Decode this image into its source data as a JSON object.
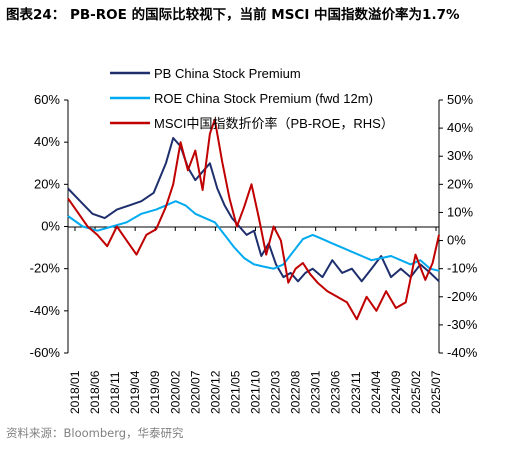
{
  "header": {
    "title": "图表24： PB-ROE 的国际比较视下，当前 MSCI 中国指数溢价率为1.7%"
  },
  "footer": {
    "source": "资料来源：Bloomberg，华泰研究"
  },
  "chart_data": {
    "type": "line",
    "x_tick_labels": [
      "2018/01",
      "2018/06",
      "2018/11",
      "2019/04",
      "2019/09",
      "2020/02",
      "2020/07",
      "2020/12",
      "2021/05",
      "2021/10",
      "2022/03",
      "2022/08",
      "2023/01",
      "2023/06",
      "2023/11",
      "2024/04",
      "2024/09",
      "2025/02",
      "2025/07"
    ],
    "y_left": {
      "ticks": [
        "60%",
        "40%",
        "20%",
        "0%",
        "-20%",
        "-40%",
        "-60%"
      ],
      "ylim": [
        -60,
        60
      ]
    },
    "y_right": {
      "ticks": [
        "50%",
        "40%",
        "30%",
        "20%",
        "10%",
        "0%",
        "-10%",
        "-20%",
        "-30%",
        "-40%"
      ],
      "ylim": [
        -40,
        50
      ]
    },
    "legend_position": "top-center",
    "grid": false,
    "series": [
      {
        "name": "PB China Stock Premium",
        "axis": "left",
        "color": "#1f2f6e",
        "x": [
          2018.0,
          2018.25,
          2018.5,
          2018.75,
          2019.0,
          2019.25,
          2019.5,
          2019.75,
          2020.0,
          2020.15,
          2020.3,
          2020.45,
          2020.6,
          2020.75,
          2020.9,
          2021.05,
          2021.2,
          2021.35,
          2021.5,
          2021.65,
          2021.8,
          2021.95,
          2022.1,
          2022.25,
          2022.4,
          2022.55,
          2022.7,
          2022.85,
          2023.0,
          2023.2,
          2023.4,
          2023.6,
          2023.8,
          2024.0,
          2024.2,
          2024.4,
          2024.6,
          2024.8,
          2025.0,
          2025.2,
          2025.4,
          2025.58
        ],
        "values": [
          18,
          12,
          6,
          4,
          8,
          10,
          12,
          16,
          30,
          42,
          38,
          28,
          22,
          26,
          30,
          18,
          10,
          4,
          0,
          -4,
          -2,
          -14,
          -8,
          -18,
          -24,
          -22,
          -26,
          -22,
          -20,
          -24,
          -16,
          -22,
          -20,
          -26,
          -20,
          -14,
          -24,
          -20,
          -24,
          -18,
          -22,
          -26
        ]
      },
      {
        "name": "ROE China Stock Premium (fwd 12m)",
        "axis": "left",
        "color": "#00aaf0",
        "x": [
          2018.0,
          2018.3,
          2018.6,
          2018.9,
          2019.2,
          2019.5,
          2019.8,
          2020.0,
          2020.2,
          2020.4,
          2020.6,
          2020.8,
          2021.0,
          2021.2,
          2021.4,
          2021.6,
          2021.8,
          2022.0,
          2022.2,
          2022.4,
          2022.6,
          2022.8,
          2023.0,
          2023.2,
          2023.4,
          2023.6,
          2023.8,
          2024.0,
          2024.2,
          2024.4,
          2024.6,
          2024.8,
          2025.0,
          2025.2,
          2025.4,
          2025.58
        ],
        "values": [
          5,
          0,
          -2,
          0,
          2,
          6,
          8,
          10,
          12,
          10,
          6,
          4,
          2,
          -4,
          -10,
          -15,
          -18,
          -19,
          -20,
          -18,
          -12,
          -6,
          -4,
          -6,
          -8,
          -10,
          -12,
          -14,
          -16,
          -15,
          -14,
          -16,
          -18,
          -16,
          -20,
          -21
        ]
      },
      {
        "name": "MSCI中国指数折价率（PB-ROE，RHS）",
        "axis": "right",
        "color": "#c00000",
        "x": [
          2018.0,
          2018.2,
          2018.4,
          2018.6,
          2018.8,
          2019.0,
          2019.2,
          2019.4,
          2019.6,
          2019.8,
          2020.0,
          2020.15,
          2020.3,
          2020.45,
          2020.6,
          2020.75,
          2020.9,
          2021.0,
          2021.15,
          2021.3,
          2021.45,
          2021.6,
          2021.75,
          2021.9,
          2022.05,
          2022.2,
          2022.35,
          2022.5,
          2022.65,
          2022.8,
          2022.95,
          2023.1,
          2023.3,
          2023.5,
          2023.7,
          2023.9,
          2024.1,
          2024.3,
          2024.5,
          2024.7,
          2024.9,
          2025.1,
          2025.3,
          2025.45,
          2025.58
        ],
        "values": [
          15,
          10,
          5,
          2,
          -2,
          5,
          0,
          -5,
          2,
          4,
          12,
          20,
          35,
          25,
          32,
          18,
          38,
          43,
          28,
          15,
          5,
          12,
          20,
          8,
          -5,
          5,
          0,
          -15,
          -10,
          -8,
          -12,
          -15,
          -18,
          -20,
          -22,
          -28,
          -20,
          -25,
          -18,
          -24,
          -22,
          -5,
          -14,
          -8,
          2
        ]
      }
    ]
  }
}
